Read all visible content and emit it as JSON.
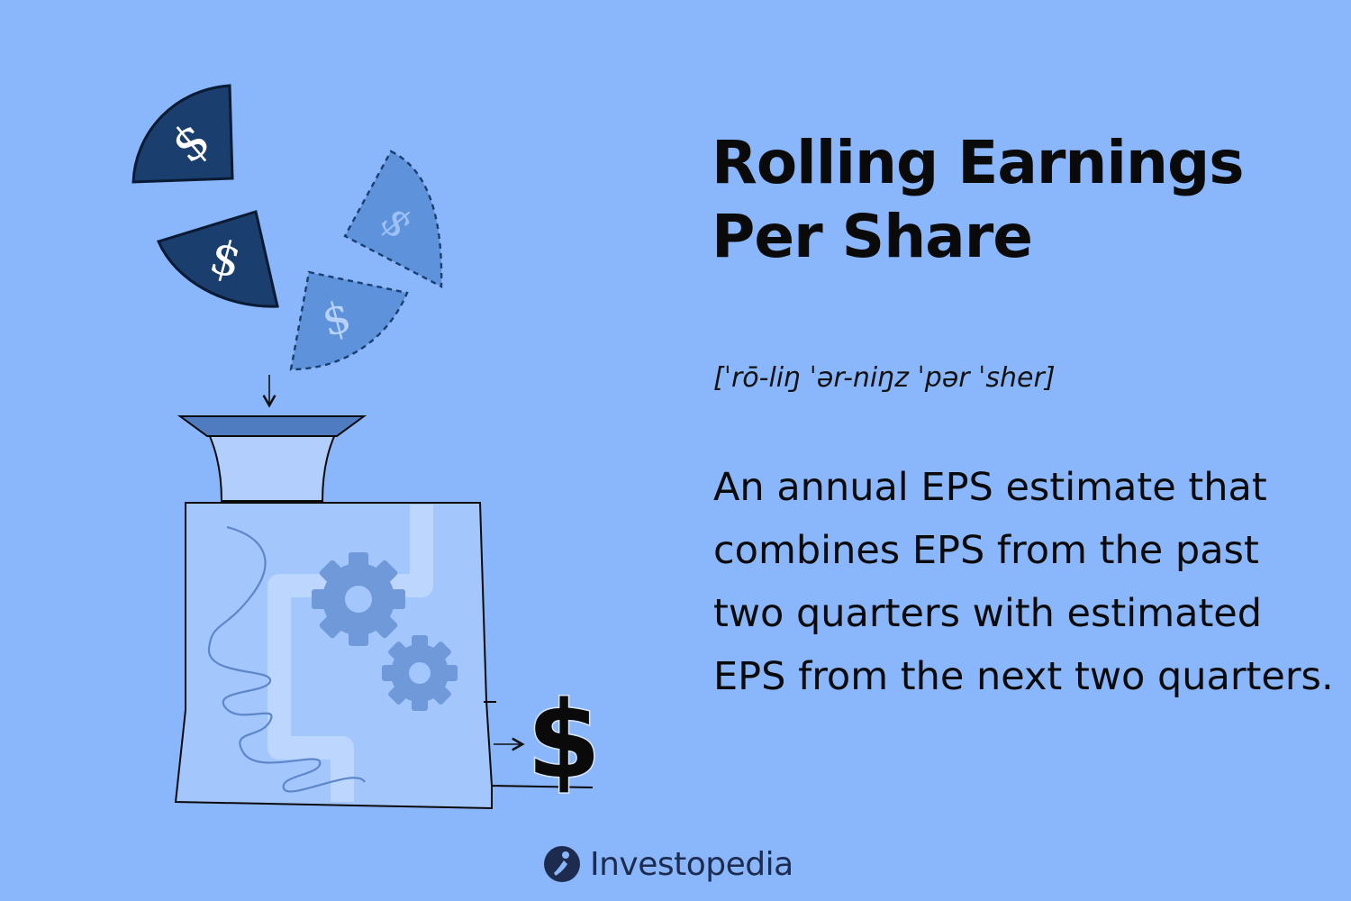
{
  "title": "Rolling Earnings Per Share",
  "pronunciation": "[ˈrō-liŋ ˈər-niŋz ˈpər ˈsher]",
  "definition": "An annual EPS estimate that combines EPS from the past two quarters with estimated EPS from the next two quarters.",
  "brand": {
    "name": "Investopedia",
    "icon": "investopedia-logo-icon"
  },
  "illustration": {
    "coin_symbol": "$",
    "output_symbol": "$",
    "icons": [
      "dollar-wedge-icon",
      "funnel-icon",
      "machine-icon",
      "gear-icon",
      "arrow-icon",
      "dollar-sign-icon"
    ]
  },
  "colors": {
    "background": "#8AB6FC",
    "navy": "#1A3E6E",
    "dashed_wedge": "#5E92DA",
    "machine_body": "#A3C6FD",
    "gear": "#6F99D8",
    "text": "#0A0A0A",
    "brand_text": "#1D2B4F"
  }
}
